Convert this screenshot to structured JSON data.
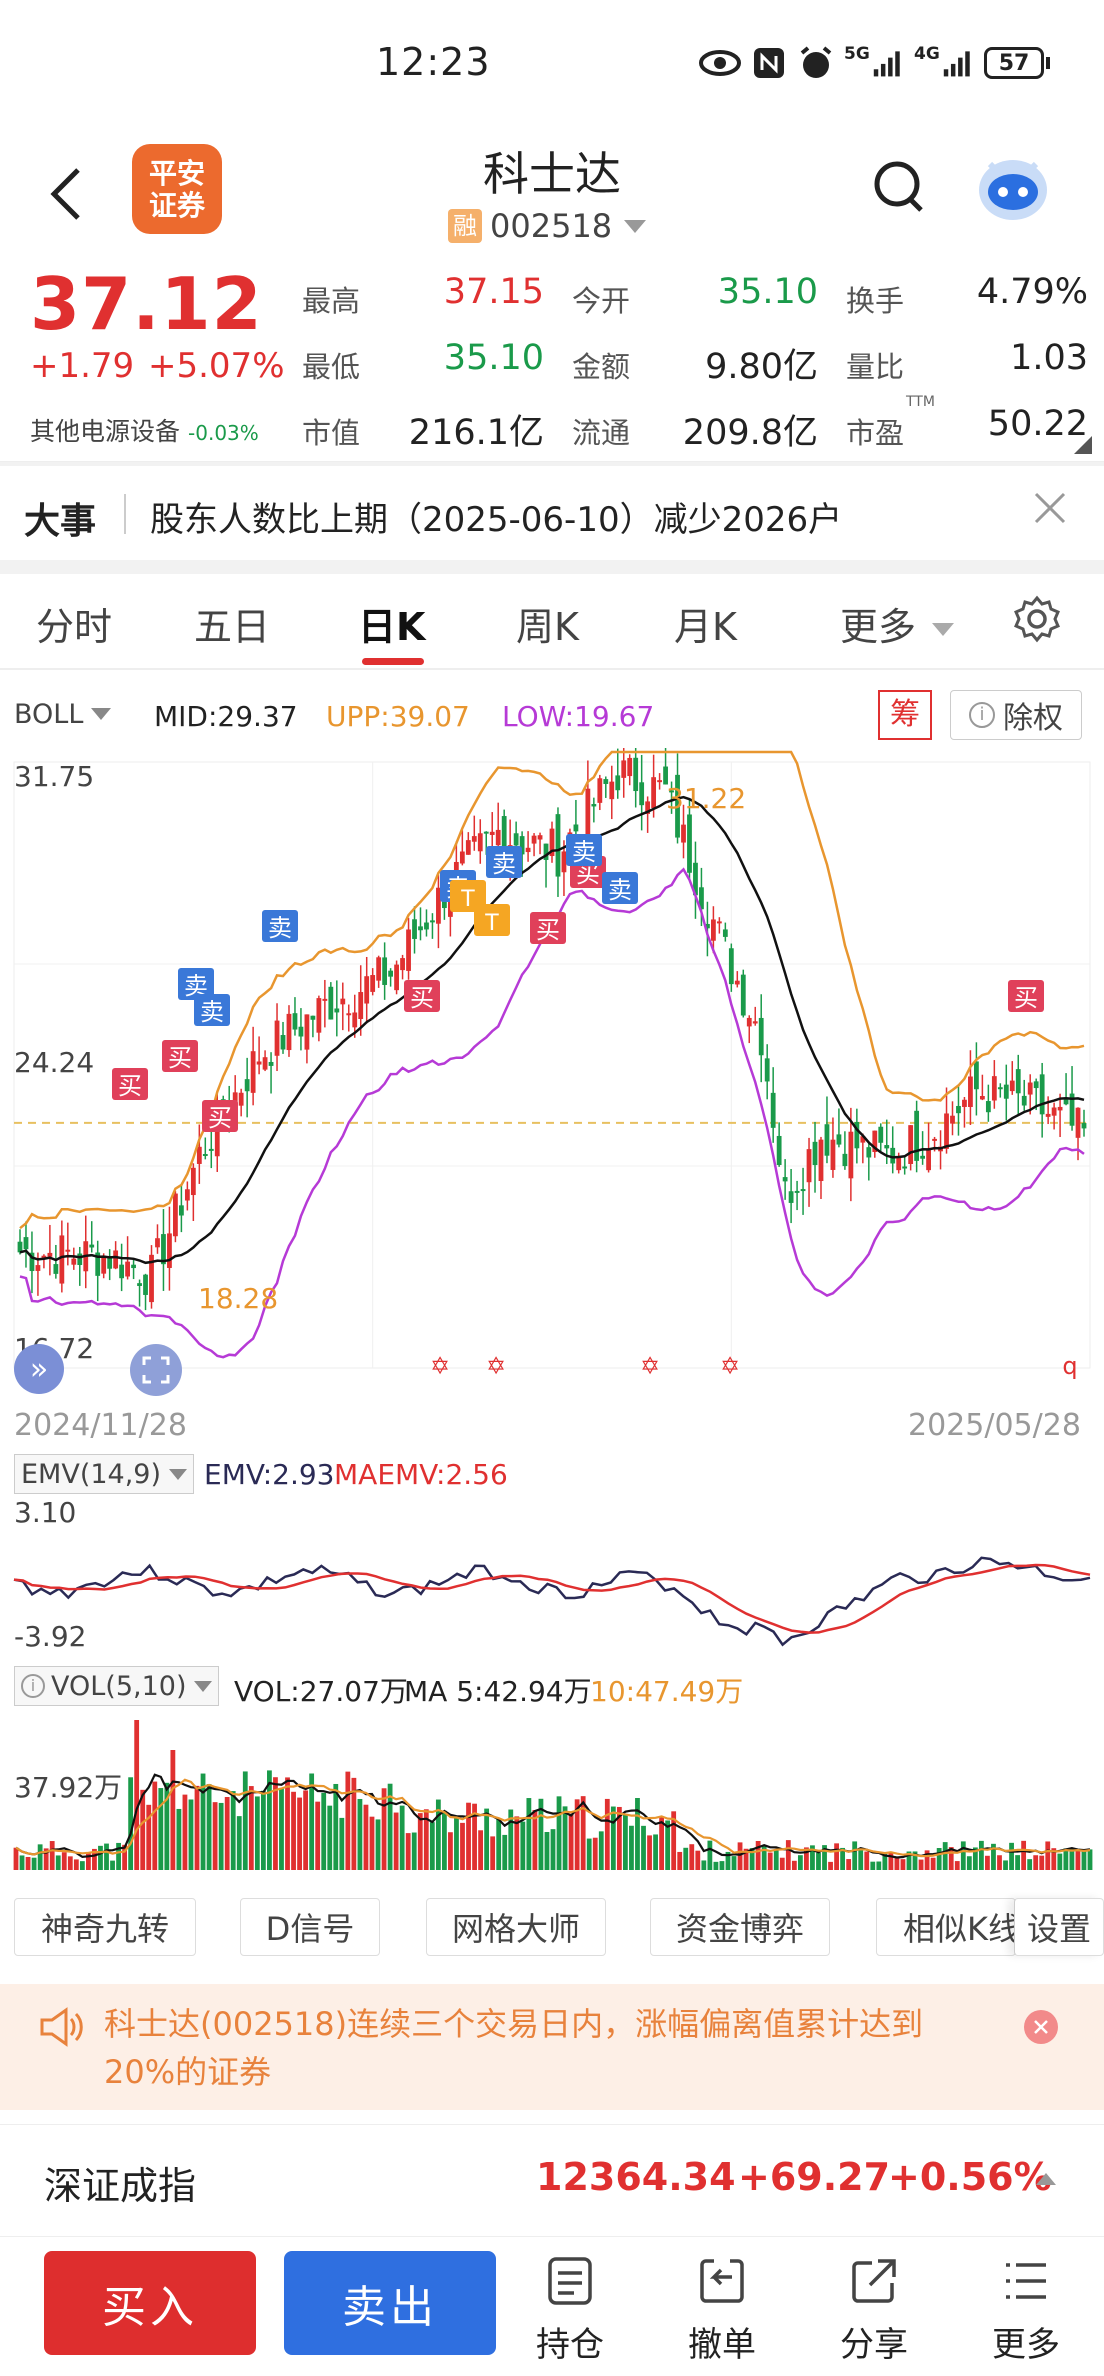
{
  "status_bar": {
    "time": "12:23",
    "signal_5g": "5G",
    "signal_4g": "4G",
    "battery": "57"
  },
  "header": {
    "broker_logo": "平安\n证券",
    "stock_name": "科士达",
    "margin_tag": "融",
    "stock_code": "002518"
  },
  "quote": {
    "price": "37.12",
    "change": "+1.79",
    "change_pct": "+5.07%",
    "sector": "其他电源设备",
    "sector_pct": "-0.03%",
    "fields": [
      {
        "label": "最高",
        "value": "37.15",
        "color": "red"
      },
      {
        "label": "今开",
        "value": "35.10",
        "color": "green"
      },
      {
        "label": "换手",
        "value": "4.79%",
        "color": "blk"
      },
      {
        "label": "最低",
        "value": "35.10",
        "color": "green"
      },
      {
        "label": "金额",
        "value": "9.80亿",
        "color": "blk"
      },
      {
        "label": "量比",
        "value": "1.03",
        "color": "blk"
      },
      {
        "label": "市值",
        "value": "216.1亿",
        "color": "blk"
      },
      {
        "label": "流通",
        "value": "209.8亿",
        "color": "blk"
      },
      {
        "label": "市盈",
        "value": "50.22",
        "color": "blk"
      }
    ],
    "pe_sup": "TTM"
  },
  "news": {
    "label": "大事",
    "text": "股东人数比上期（2025-06-10）减少2026户"
  },
  "tabs": [
    "分时",
    "五日",
    "日K",
    "周K",
    "月K",
    "更多"
  ],
  "boll": {
    "name": "BOLL",
    "mid": "MID:29.37",
    "upp": "UPP:39.07",
    "low": "LOW:19.67",
    "chip_btn": "筹",
    "exright_btn": "除权"
  },
  "kchart": {
    "y_top": "31.75",
    "y_mid": "24.24",
    "y_bot": "16.72",
    "upper_annot": "31.22",
    "lower_annot": "18.28",
    "date_start": "2024/11/28",
    "date_end": "2025/05/28",
    "buy": "买",
    "sell": "卖",
    "t": "T"
  },
  "emv": {
    "name": "EMV(14,9)",
    "emv": "EMV:2.93",
    "maemv": "MAEMV:2.56",
    "y_top": "3.10",
    "y_bot": "-3.92"
  },
  "vol": {
    "name": "VOL(5,10)",
    "vol": "VOL:27.07万",
    "ma5": "MA 5:42.94万",
    "ma10": "10:47.49万",
    "y_label": "37.92万"
  },
  "tools": [
    "神奇九转",
    "D信号",
    "网格大师",
    "资金博弈",
    "相似K线",
    "设置"
  ],
  "alert": {
    "text": "科士达(002518)连续三个交易日内，涨幅偏离值累计达到20%的证券"
  },
  "index": {
    "name": "深证成指",
    "value": "12364.34",
    "change": "+69.27",
    "pct": "+0.56%"
  },
  "bottom": {
    "buy": "买入",
    "sell": "卖出",
    "hold": "持仓",
    "cancel": "撤单",
    "share": "分享",
    "more": "更多"
  },
  "colors": {
    "up": "#e03030",
    "down": "#1a9a4a",
    "boll_upper": "#e8962f",
    "boll_lower": "#b63ad6",
    "buy_btn": "#de2e2e",
    "sell_btn": "#2f6fe0"
  }
}
